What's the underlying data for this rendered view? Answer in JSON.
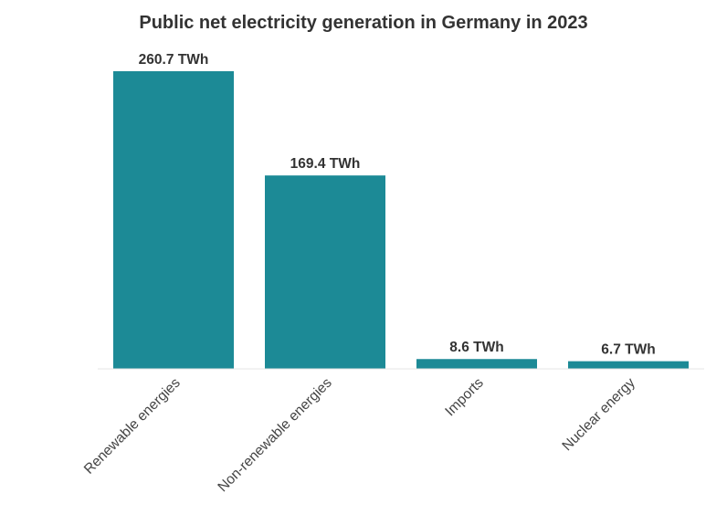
{
  "chart_data": {
    "type": "bar",
    "title": "Public net electricity generation in Germany in 2023",
    "categories": [
      "Renewable energies",
      "Non-renewable energies",
      "Imports",
      "Nuclear energy"
    ],
    "values": [
      260.7,
      169.4,
      8.6,
      6.7
    ],
    "data_labels": [
      "260.7 TWh",
      "169.4 TWh",
      "8.6 TWh",
      "6.7 TWh"
    ],
    "unit": "TWh",
    "xlabel": "",
    "ylabel": "",
    "ylim": [
      0,
      260.7
    ],
    "grid": false,
    "legend": "none",
    "bar_color": "#1c8a96"
  }
}
